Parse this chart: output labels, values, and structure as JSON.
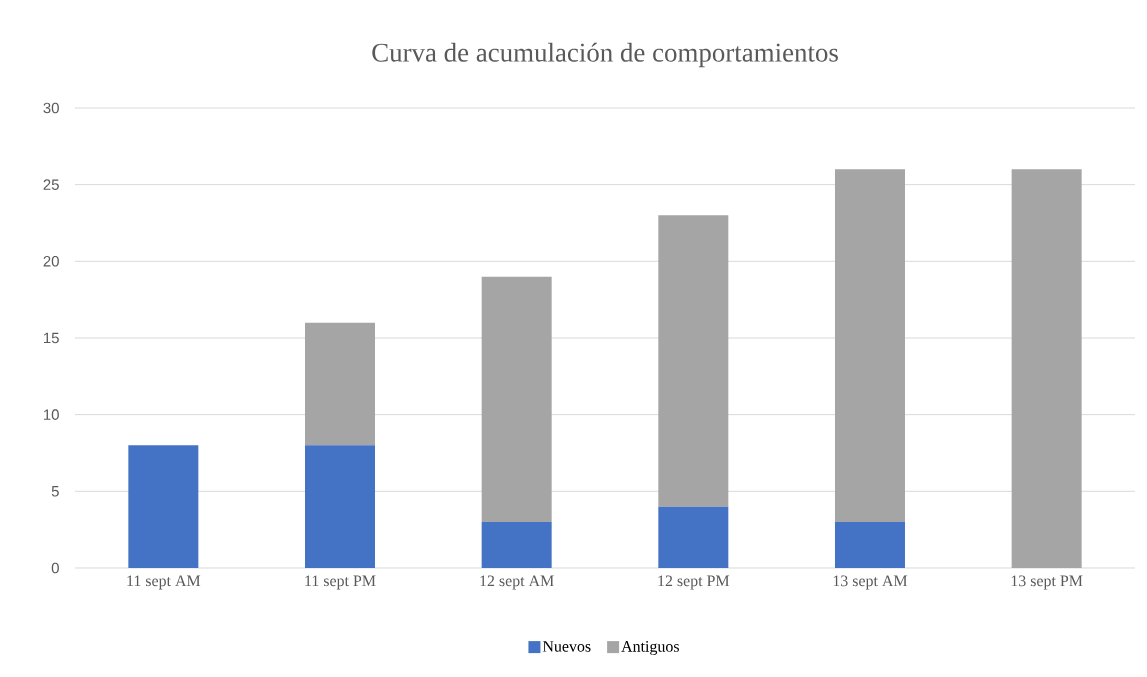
{
  "chart_data": {
    "type": "bar",
    "title": "Curva de acumulación de comportamientos",
    "categories": [
      "11 sept AM",
      "11 sept PM",
      "12 sept AM",
      "12 sept PM",
      "13 sept AM",
      "13 sept PM"
    ],
    "series": [
      {
        "name": "Nuevos",
        "color": "#4472c4",
        "values": [
          8,
          8,
          3,
          4,
          3,
          0
        ]
      },
      {
        "name": "Antiguos",
        "color": "#a5a5a5",
        "values": [
          0,
          8,
          16,
          19,
          23,
          26
        ]
      }
    ],
    "stacked": true,
    "ylim": [
      0,
      30
    ],
    "yticks": [
      0,
      5,
      10,
      15,
      20,
      25,
      30
    ],
    "grid": "y",
    "legend": "bottom"
  }
}
